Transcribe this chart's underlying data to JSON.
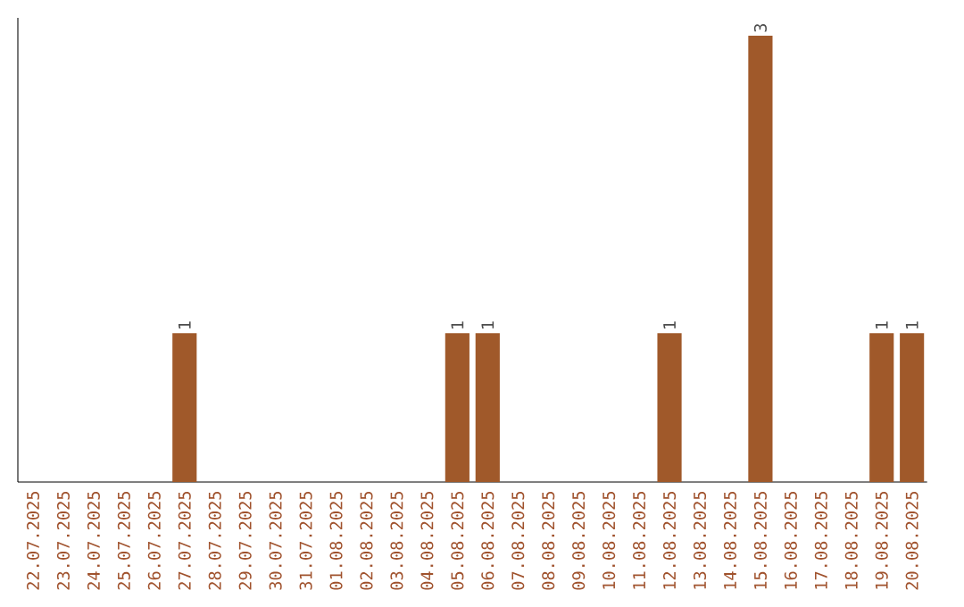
{
  "chart_data": {
    "type": "bar",
    "categories": [
      "22.07.2025",
      "23.07.2025",
      "24.07.2025",
      "25.07.2025",
      "26.07.2025",
      "27.07.2025",
      "28.07.2025",
      "29.07.2025",
      "30.07.2025",
      "31.07.2025",
      "01.08.2025",
      "02.08.2025",
      "03.08.2025",
      "04.08.2025",
      "05.08.2025",
      "06.08.2025",
      "07.08.2025",
      "08.08.2025",
      "09.08.2025",
      "10.08.2025",
      "11.08.2025",
      "12.08.2025",
      "13.08.2025",
      "14.08.2025",
      "15.08.2025",
      "16.08.2025",
      "17.08.2025",
      "18.08.2025",
      "19.08.2025",
      "20.08.2025"
    ],
    "values": [
      0,
      0,
      0,
      0,
      0,
      1,
      0,
      0,
      0,
      0,
      0,
      0,
      0,
      0,
      1,
      1,
      0,
      0,
      0,
      0,
      0,
      1,
      0,
      0,
      3,
      0,
      0,
      0,
      1,
      1
    ],
    "value_labels": [
      null,
      null,
      null,
      null,
      null,
      "1",
      null,
      null,
      null,
      null,
      null,
      null,
      null,
      null,
      "1",
      "1",
      null,
      null,
      null,
      null,
      null,
      "1",
      null,
      null,
      "3",
      null,
      null,
      null,
      "1",
      "1"
    ],
    "color": "#a0592a",
    "tick_labels": "x"
  }
}
